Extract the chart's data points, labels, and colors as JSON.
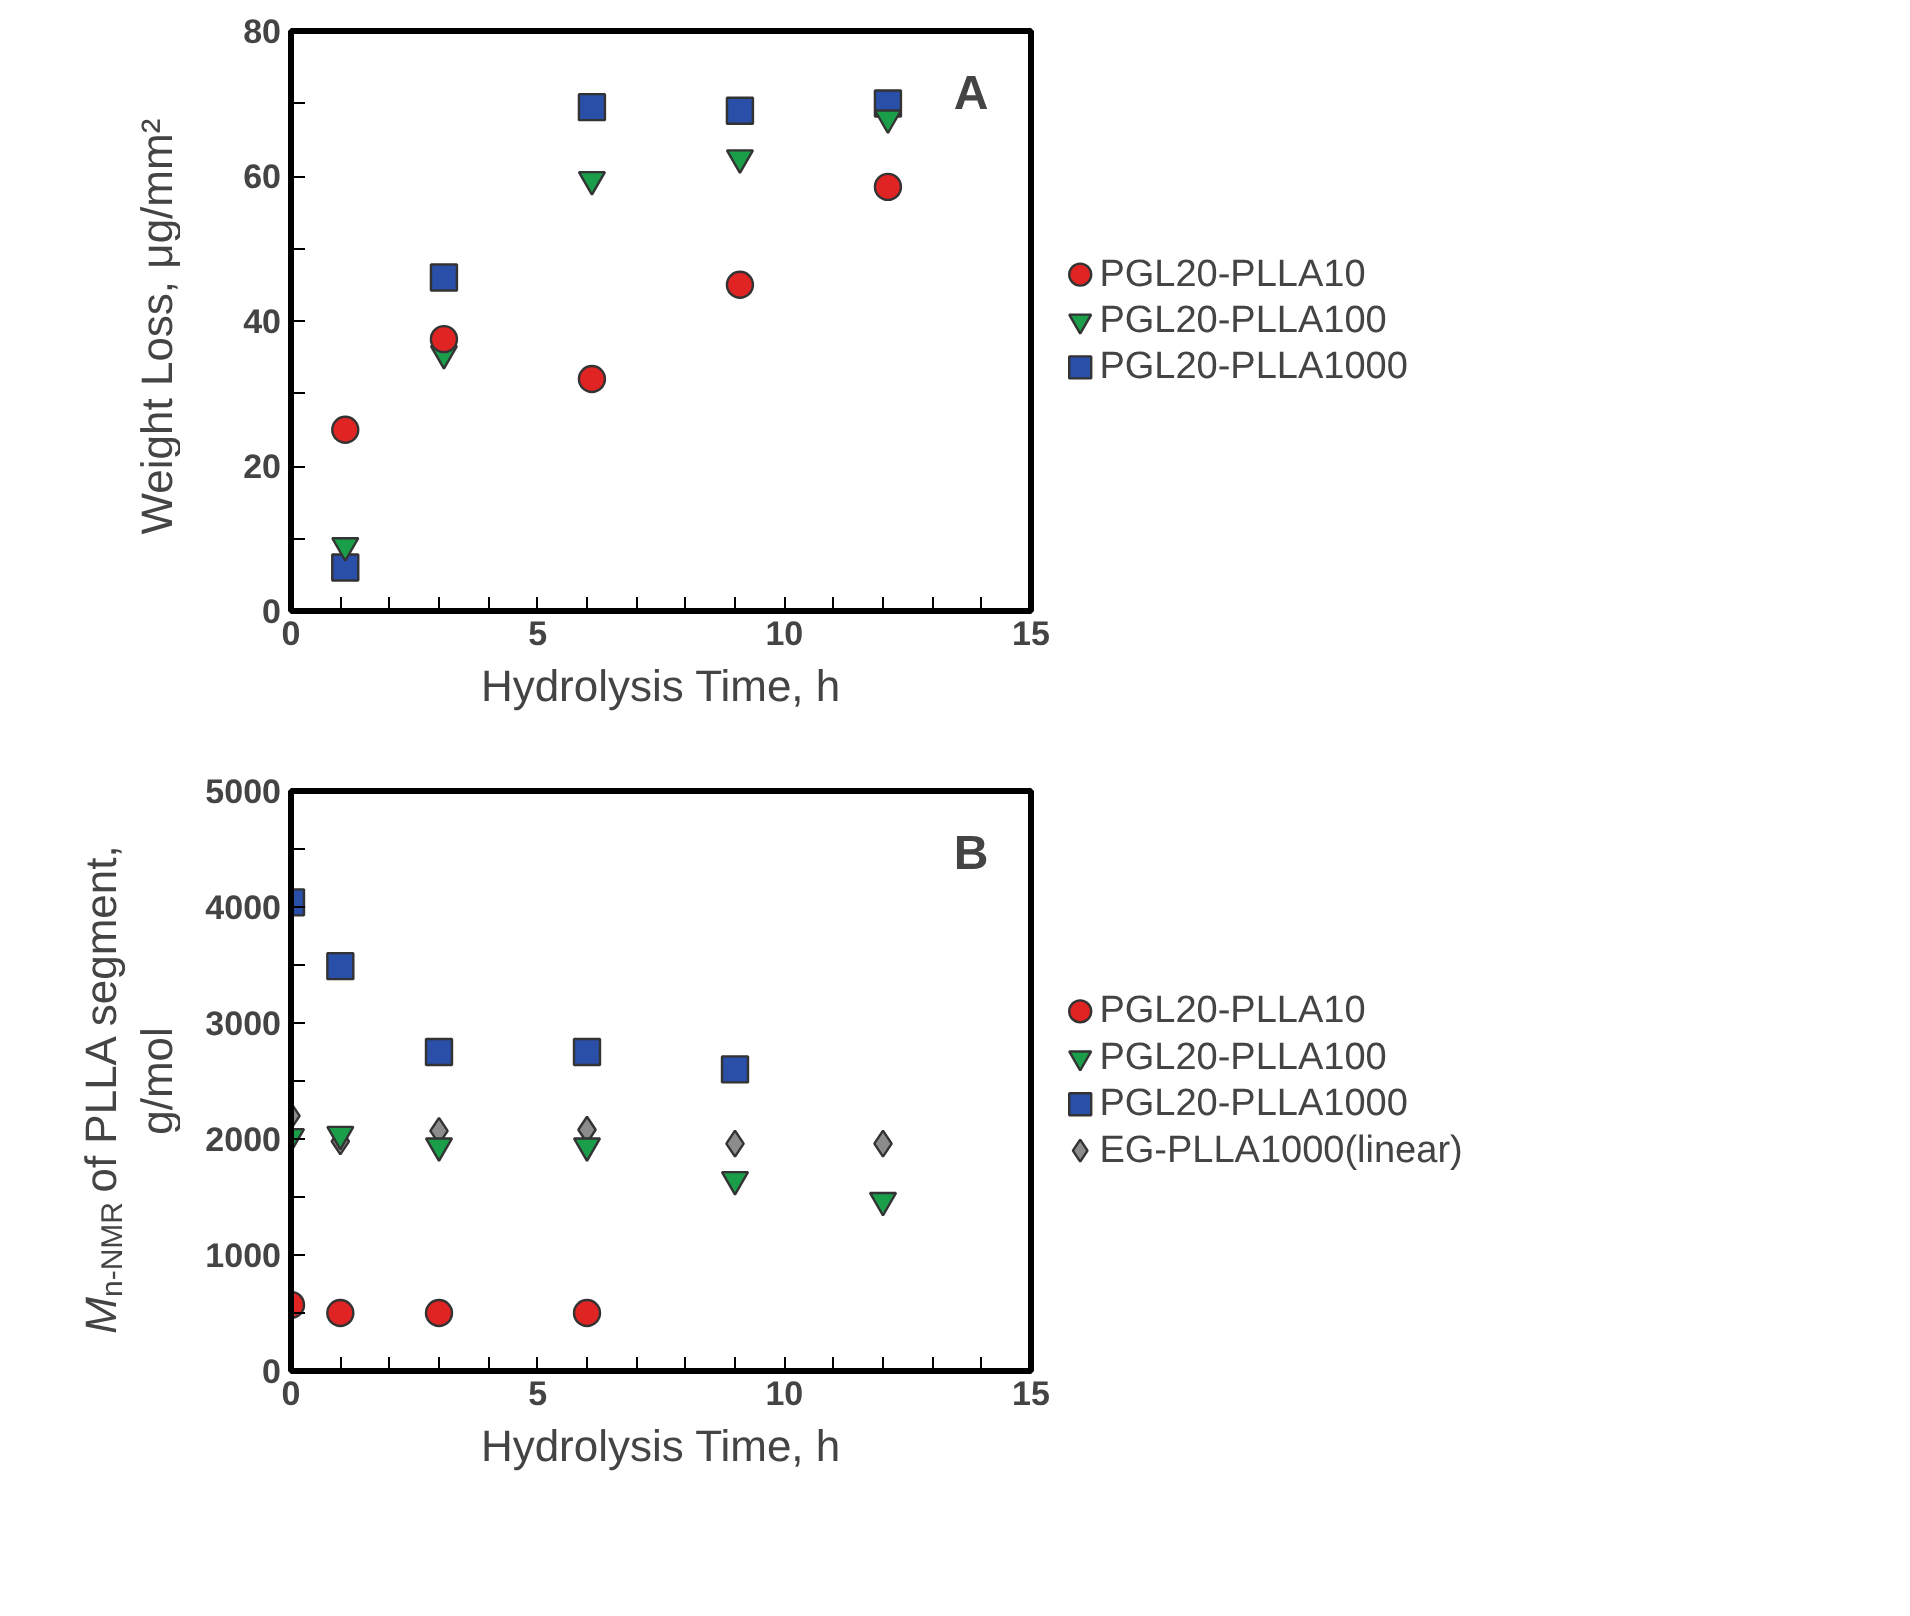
{
  "chart_data": [
    {
      "type": "scatter",
      "xlabel": "Hydrolysis Time, h",
      "ylabel": "Weight Loss, μg/mm²",
      "annotations": [
        "A"
      ],
      "xlim": [
        0,
        15
      ],
      "ylim": [
        0,
        80
      ],
      "xticks": [
        0,
        {
          "value": 1,
          "label": null
        },
        {
          "value": 2,
          "label": null
        },
        {
          "value": 3,
          "label": null
        },
        {
          "value": 4,
          "label": null
        },
        5,
        {
          "value": 6,
          "label": null
        },
        {
          "value": 7,
          "label": null
        },
        {
          "value": 8,
          "label": null
        },
        {
          "value": 9,
          "label": null
        },
        10,
        {
          "value": 11,
          "label": null
        },
        {
          "value": 12,
          "label": null
        },
        {
          "value": 13,
          "label": null
        },
        {
          "value": 14,
          "label": null
        },
        15
      ],
      "yticks": [
        0,
        {
          "value": 10,
          "label": null
        },
        20,
        {
          "value": 30,
          "label": null
        },
        40,
        {
          "value": 50,
          "label": null
        },
        60,
        {
          "value": 70,
          "label": null
        },
        80
      ],
      "grid": false,
      "legend": "right",
      "series": [
        {
          "name": "PGL20-PLLA10",
          "color": "#e02424",
          "marker": "circle",
          "x": [
            1.1,
            3.1,
            6.1,
            9.1,
            12.1
          ],
          "values": [
            25,
            37.5,
            32,
            45,
            58.5
          ]
        },
        {
          "name": "PGL20-PLLA100",
          "color": "#1a9e4a",
          "marker": "triangle",
          "x": [
            1.1,
            3.1,
            6.1,
            9.1,
            12.1
          ],
          "values": [
            9,
            35.5,
            59.5,
            62.5,
            68
          ]
        },
        {
          "name": "PGL20-PLLA1000",
          "color": "#2a4fa8",
          "marker": "square",
          "x": [
            1.1,
            3.1,
            6.1,
            9.1,
            12.1
          ],
          "values": [
            6,
            46,
            69.5,
            69,
            70
          ]
        }
      ]
    },
    {
      "type": "scatter",
      "xlabel": "Hydrolysis Time, h",
      "ylabel": "M$_{n-NMR}$ of PLLA segment, g/mol",
      "annotations": [
        "B"
      ],
      "xlim": [
        0,
        15
      ],
      "ylim": [
        0,
        5000
      ],
      "xticks": [
        0,
        {
          "value": 1,
          "label": null
        },
        {
          "value": 2,
          "label": null
        },
        {
          "value": 3,
          "label": null
        },
        {
          "value": 4,
          "label": null
        },
        5,
        {
          "value": 6,
          "label": null
        },
        {
          "value": 7,
          "label": null
        },
        {
          "value": 8,
          "label": null
        },
        {
          "value": 9,
          "label": null
        },
        10,
        {
          "value": 11,
          "label": null
        },
        {
          "value": 12,
          "label": null
        },
        {
          "value": 13,
          "label": null
        },
        {
          "value": 14,
          "label": null
        },
        15
      ],
      "yticks": [
        0,
        {
          "value": 500,
          "label": null
        },
        1000,
        {
          "value": 1500,
          "label": null
        },
        2000,
        {
          "value": 2500,
          "label": null
        },
        3000,
        {
          "value": 3500,
          "label": null
        },
        4000,
        {
          "value": 4500,
          "label": null
        },
        5000
      ],
      "grid": false,
      "legend": "right",
      "series": [
        {
          "name": "PGL20-PLLA10",
          "color": "#e02424",
          "marker": "circle",
          "x": [
            0,
            1,
            3,
            6
          ],
          "values": [
            570,
            500,
            500,
            500
          ]
        },
        {
          "name": "PGL20-PLLA100",
          "color": "#1a9e4a",
          "marker": "triangle",
          "x": [
            0,
            1,
            3,
            6,
            9,
            12
          ],
          "values": [
            2020,
            2040,
            1940,
            1940,
            1650,
            1470
          ]
        },
        {
          "name": "PGL20-PLLA1000",
          "color": "#2a4fa8",
          "marker": "square",
          "x": [
            0,
            1,
            3,
            6,
            9
          ],
          "values": [
            4040,
            3490,
            2750,
            2750,
            2600
          ]
        },
        {
          "name": "EG-PLLA1000(linear)",
          "color": "#8c8c8c",
          "marker": "diamond",
          "x": [
            0,
            1,
            3,
            6,
            9,
            12
          ],
          "values": [
            2200,
            1980,
            2070,
            2080,
            1960,
            1960
          ]
        }
      ]
    }
  ]
}
